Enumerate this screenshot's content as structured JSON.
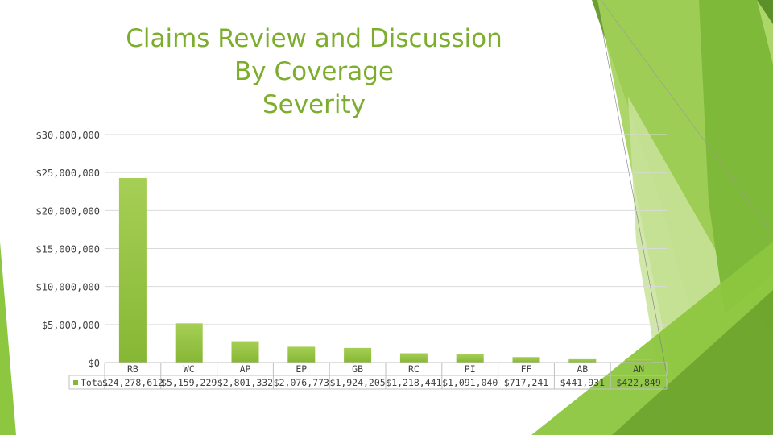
{
  "slide": {
    "title_lines": [
      "Claims Review and Discussion",
      "By Coverage",
      "Severity"
    ]
  },
  "colors": {
    "bar": "#86b734",
    "bar_light": "#a6cf55",
    "title": "#7cad2c",
    "axis_text": "#404040",
    "grid": "#d9d9d9",
    "deco_green_1": "#8dc63f",
    "deco_green_2": "#6aa12c",
    "deco_green_3": "#c9e39b",
    "deco_green_4": "#a3d25a",
    "deco_green_5": "#5c8f27"
  },
  "chart_data": {
    "type": "bar",
    "title": "Claims Review and Discussion By Coverage Severity",
    "categories": [
      "RB",
      "WC",
      "AP",
      "EP",
      "GB",
      "RC",
      "PI",
      "FF",
      "AB",
      "AN"
    ],
    "series": [
      {
        "name": "Total",
        "values": [
          24278612,
          5159229,
          2801332,
          2076773,
          1924205,
          1218441,
          1091040,
          717241,
          441931,
          422849
        ],
        "labels": [
          "$24,278,612",
          "$5,159,229",
          "$2,801,332",
          "$2,076,773",
          "$1,924,205",
          "$1,218,441",
          "$1,091,040",
          "$717,241",
          "$441,931",
          "$422,849"
        ]
      }
    ],
    "y_ticks": [
      0,
      5000000,
      10000000,
      15000000,
      20000000,
      25000000,
      30000000
    ],
    "y_tick_labels": [
      "$0",
      "$5,000,000",
      "$10,000,000",
      "$15,000,000",
      "$20,000,000",
      "$25,000,000",
      "$30,000,000"
    ],
    "ylim": [
      0,
      30000000
    ],
    "xlabel": "",
    "ylabel": "",
    "grid": true,
    "legend": "data-table",
    "legend_label": "Total"
  }
}
